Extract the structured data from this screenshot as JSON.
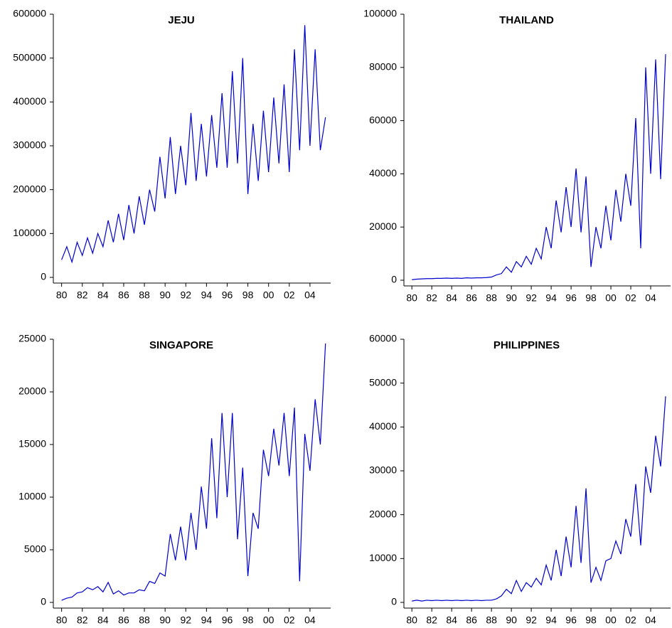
{
  "chart_data": [
    {
      "type": "line",
      "title": "JEJU",
      "color": "#0000cc",
      "x": [
        1980,
        1980.5,
        1981,
        1981.5,
        1982,
        1982.5,
        1983,
        1983.5,
        1984,
        1984.5,
        1985,
        1985.5,
        1986,
        1986.5,
        1987,
        1987.5,
        1988,
        1988.5,
        1989,
        1989.5,
        1990,
        1990.5,
        1991,
        1991.5,
        1992,
        1992.5,
        1993,
        1993.5,
        1994,
        1994.5,
        1995,
        1995.5,
        1996,
        1996.5,
        1997,
        1997.5,
        1998,
        1998.5,
        1999,
        1999.5,
        2000,
        2000.5,
        2001,
        2001.5,
        2002,
        2002.5,
        2003,
        2003.5,
        2004,
        2004.5,
        2005,
        2005.5
      ],
      "values": [
        40000,
        70000,
        35000,
        80000,
        50000,
        90000,
        55000,
        100000,
        70000,
        130000,
        80000,
        145000,
        85000,
        165000,
        100000,
        185000,
        120000,
        200000,
        150000,
        275000,
        180000,
        320000,
        190000,
        300000,
        210000,
        375000,
        220000,
        350000,
        230000,
        370000,
        250000,
        420000,
        250000,
        470000,
        260000,
        500000,
        190000,
        350000,
        220000,
        380000,
        240000,
        410000,
        260000,
        440000,
        240000,
        520000,
        290000,
        575000,
        300000,
        520000,
        290000,
        365000
      ],
      "xlim": [
        1979.2,
        2006
      ],
      "xticks": [
        {
          "value": 1980,
          "label": "80"
        },
        {
          "value": 1982,
          "label": "82"
        },
        {
          "value": 1984,
          "label": "84"
        },
        {
          "value": 1986,
          "label": "86"
        },
        {
          "value": 1988,
          "label": "88"
        },
        {
          "value": 1990,
          "label": "90"
        },
        {
          "value": 1992,
          "label": "92"
        },
        {
          "value": 1994,
          "label": "94"
        },
        {
          "value": 1996,
          "label": "96"
        },
        {
          "value": 1998,
          "label": "98"
        },
        {
          "value": 2000,
          "label": "00"
        },
        {
          "value": 2002,
          "label": "02"
        },
        {
          "value": 2004,
          "label": "04"
        }
      ],
      "ylim": [
        0,
        600000
      ],
      "yticks": [
        0,
        100000,
        200000,
        300000,
        400000,
        500000,
        600000
      ]
    },
    {
      "type": "line",
      "title": "THAILAND",
      "color": "#0000cc",
      "x": [
        1980,
        1980.5,
        1981,
        1981.5,
        1982,
        1982.5,
        1983,
        1983.5,
        1984,
        1984.5,
        1985,
        1985.5,
        1986,
        1986.5,
        1987,
        1987.5,
        1988,
        1988.5,
        1989,
        1989.5,
        1990,
        1990.5,
        1991,
        1991.5,
        1992,
        1992.5,
        1993,
        1993.5,
        1994,
        1994.5,
        1995,
        1995.5,
        1996,
        1996.5,
        1997,
        1997.5,
        1998,
        1998.5,
        1999,
        1999.5,
        2000,
        2000.5,
        2001,
        2001.5,
        2002,
        2002.5,
        2003,
        2003.5,
        2004,
        2004.5,
        2005,
        2005.5
      ],
      "values": [
        200,
        400,
        500,
        600,
        600,
        700,
        700,
        800,
        700,
        800,
        700,
        900,
        800,
        900,
        900,
        1000,
        1200,
        2000,
        2500,
        5000,
        3000,
        7000,
        5000,
        9000,
        6000,
        12000,
        8000,
        20000,
        12000,
        30000,
        18000,
        35000,
        20000,
        42000,
        18000,
        39000,
        5000,
        20000,
        12000,
        28000,
        15000,
        34000,
        22000,
        40000,
        28000,
        61000,
        12000,
        80000,
        40000,
        83000,
        38000,
        85000
      ],
      "xlim": [
        1979.2,
        2006
      ],
      "xticks": [
        {
          "value": 1980,
          "label": "80"
        },
        {
          "value": 1982,
          "label": "82"
        },
        {
          "value": 1984,
          "label": "84"
        },
        {
          "value": 1986,
          "label": "86"
        },
        {
          "value": 1988,
          "label": "88"
        },
        {
          "value": 1990,
          "label": "90"
        },
        {
          "value": 1992,
          "label": "92"
        },
        {
          "value": 1994,
          "label": "94"
        },
        {
          "value": 1996,
          "label": "96"
        },
        {
          "value": 1998,
          "label": "98"
        },
        {
          "value": 2000,
          "label": "00"
        },
        {
          "value": 2002,
          "label": "02"
        },
        {
          "value": 2004,
          "label": "04"
        }
      ],
      "ylim": [
        0,
        100000
      ],
      "yticks": [
        0,
        20000,
        40000,
        60000,
        80000,
        100000
      ]
    },
    {
      "type": "line",
      "title": "SINGAPORE",
      "color": "#0000cc",
      "x": [
        1980,
        1980.5,
        1981,
        1981.5,
        1982,
        1982.5,
        1983,
        1983.5,
        1984,
        1984.5,
        1985,
        1985.5,
        1986,
        1986.5,
        1987,
        1987.5,
        1988,
        1988.5,
        1989,
        1989.5,
        1990,
        1990.5,
        1991,
        1991.5,
        1992,
        1992.5,
        1993,
        1993.5,
        1994,
        1994.5,
        1995,
        1995.5,
        1996,
        1996.5,
        1997,
        1997.5,
        1998,
        1998.5,
        1999,
        1999.5,
        2000,
        2000.5,
        2001,
        2001.5,
        2002,
        2002.5,
        2003,
        2003.5,
        2004,
        2004.5,
        2005,
        2005.5
      ],
      "values": [
        200,
        400,
        500,
        900,
        1000,
        1400,
        1200,
        1500,
        1000,
        1900,
        800,
        1100,
        700,
        900,
        900,
        1200,
        1100,
        2000,
        1800,
        2800,
        2500,
        6500,
        4000,
        7200,
        4000,
        8500,
        5000,
        11000,
        7000,
        15600,
        8000,
        18000,
        10000,
        18000,
        6000,
        12800,
        2500,
        8500,
        7000,
        14500,
        12000,
        16500,
        13000,
        18000,
        12000,
        18500,
        2000,
        16000,
        12500,
        19300,
        15000,
        24600
      ],
      "xlim": [
        1979.2,
        2006
      ],
      "xticks": [
        {
          "value": 1980,
          "label": "80"
        },
        {
          "value": 1982,
          "label": "82"
        },
        {
          "value": 1984,
          "label": "84"
        },
        {
          "value": 1986,
          "label": "86"
        },
        {
          "value": 1988,
          "label": "88"
        },
        {
          "value": 1990,
          "label": "90"
        },
        {
          "value": 1992,
          "label": "92"
        },
        {
          "value": 1994,
          "label": "94"
        },
        {
          "value": 1996,
          "label": "96"
        },
        {
          "value": 1998,
          "label": "98"
        },
        {
          "value": 2000,
          "label": "00"
        },
        {
          "value": 2002,
          "label": "02"
        },
        {
          "value": 2004,
          "label": "04"
        }
      ],
      "ylim": [
        0,
        25000
      ],
      "yticks": [
        0,
        5000,
        10000,
        15000,
        20000,
        25000
      ]
    },
    {
      "type": "line",
      "title": "PHILIPPINES",
      "color": "#0000cc",
      "x": [
        1980,
        1980.5,
        1981,
        1981.5,
        1982,
        1982.5,
        1983,
        1983.5,
        1984,
        1984.5,
        1985,
        1985.5,
        1986,
        1986.5,
        1987,
        1987.5,
        1988,
        1988.5,
        1989,
        1989.5,
        1990,
        1990.5,
        1991,
        1991.5,
        1992,
        1992.5,
        1993,
        1993.5,
        1994,
        1994.5,
        1995,
        1995.5,
        1996,
        1996.5,
        1997,
        1997.5,
        1998,
        1998.5,
        1999,
        1999.5,
        2000,
        2000.5,
        2001,
        2001.5,
        2002,
        2002.5,
        2003,
        2003.5,
        2004,
        2004.5,
        2005,
        2005.5
      ],
      "values": [
        300,
        500,
        300,
        500,
        400,
        500,
        400,
        500,
        400,
        500,
        400,
        500,
        400,
        500,
        400,
        500,
        500,
        800,
        1500,
        3000,
        2000,
        5000,
        2500,
        4500,
        3500,
        5500,
        4000,
        8500,
        5000,
        12000,
        6000,
        15000,
        8000,
        22000,
        9000,
        26000,
        4500,
        8000,
        5000,
        9500,
        10000,
        14000,
        11000,
        19000,
        15000,
        27000,
        13000,
        31000,
        25000,
        38000,
        31000,
        47000
      ],
      "xlim": [
        1979.2,
        2006
      ],
      "xticks": [
        {
          "value": 1980,
          "label": "80"
        },
        {
          "value": 1982,
          "label": "82"
        },
        {
          "value": 1984,
          "label": "84"
        },
        {
          "value": 1986,
          "label": "86"
        },
        {
          "value": 1988,
          "label": "88"
        },
        {
          "value": 1990,
          "label": "90"
        },
        {
          "value": 1992,
          "label": "92"
        },
        {
          "value": 1994,
          "label": "94"
        },
        {
          "value": 1996,
          "label": "96"
        },
        {
          "value": 1998,
          "label": "98"
        },
        {
          "value": 2000,
          "label": "00"
        },
        {
          "value": 2002,
          "label": "02"
        },
        {
          "value": 2004,
          "label": "04"
        }
      ],
      "ylim": [
        0,
        60000
      ],
      "yticks": [
        0,
        10000,
        20000,
        30000,
        40000,
        50000,
        60000
      ]
    }
  ]
}
